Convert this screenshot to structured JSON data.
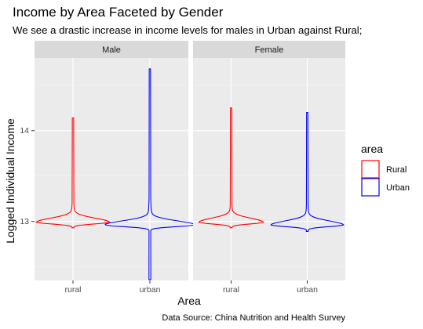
{
  "chart_data": {
    "type": "violin",
    "title": "Income by Area Faceted by Gender",
    "subtitle": "We see a drastic increase in income levels for males in Urban against Rural;",
    "xlabel": "Area",
    "ylabel": "Logged Individual Income",
    "caption": "Data Source: China Nutrition and Health Survey",
    "categories": [
      "rural",
      "urban"
    ],
    "yticks": [
      13,
      14
    ],
    "ylim": [
      12.35,
      14.8
    ],
    "grid": true,
    "legend": {
      "title": "area",
      "position": "right",
      "entries": [
        {
          "label": "Rural",
          "color": "#ff0000"
        },
        {
          "label": "Urban",
          "color": "#0000ff"
        }
      ]
    },
    "facets": [
      {
        "label": "Male",
        "violins": [
          {
            "category": "rural",
            "color": "#ff0000",
            "min": 12.93,
            "max": 14.14,
            "mode": 12.99,
            "max_half_width": 0.45
          },
          {
            "category": "urban",
            "color": "#0000ff",
            "min": 12.36,
            "max": 14.68,
            "mode": 12.96,
            "max_half_width": 0.56
          }
        ]
      },
      {
        "label": "Female",
        "violins": [
          {
            "category": "rural",
            "color": "#ff0000",
            "min": 12.93,
            "max": 14.25,
            "mode": 12.99,
            "max_half_width": 0.4
          },
          {
            "category": "urban",
            "color": "#0000ff",
            "min": 12.89,
            "max": 14.2,
            "mode": 12.96,
            "max_half_width": 0.45
          }
        ]
      }
    ]
  }
}
